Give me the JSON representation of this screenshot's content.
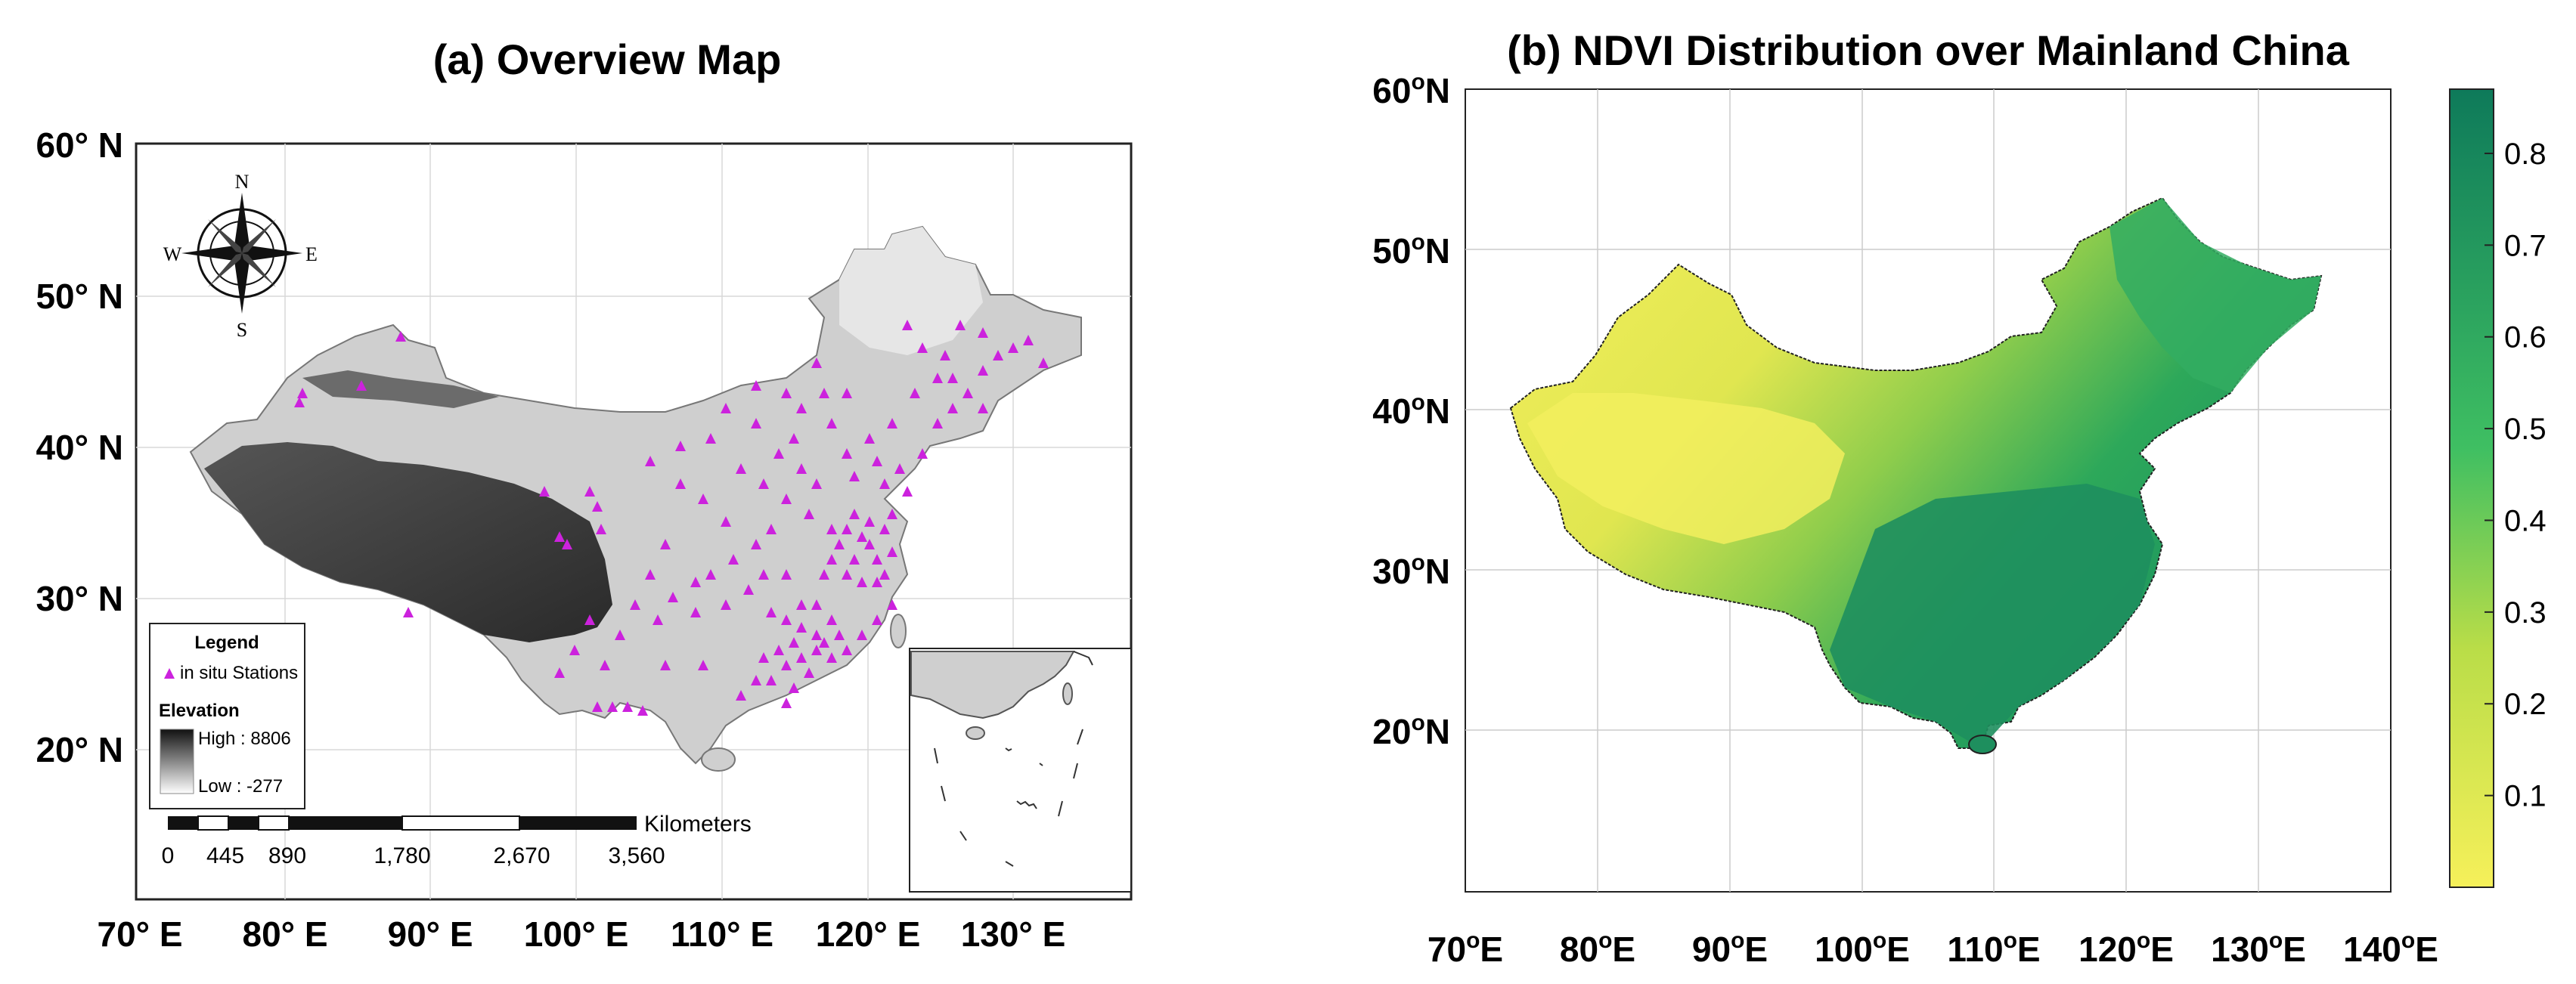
{
  "panel_a": {
    "title": "(a) Overview Map",
    "lat_ticks": [
      "60° N",
      "50° N",
      "40° N",
      "30° N",
      "20° N"
    ],
    "lon_ticks": [
      "70° E",
      "80° E",
      "90° E",
      "100° E",
      "110° E",
      "120° E",
      "130° E"
    ],
    "compass": {
      "n": "N",
      "s": "S",
      "e": "E",
      "w": "W"
    },
    "legend": {
      "title": "Legend",
      "stations_label": "in situ Stations",
      "elevation_title": "Elevation",
      "high_label": "High : 8806",
      "low_label": "Low : -277"
    },
    "scalebar": {
      "unit": "Kilometers",
      "ticks": [
        "0",
        "445",
        "890",
        "1,780",
        "2,670",
        "3,560"
      ]
    },
    "colors": {
      "station": "#cc22dd",
      "elevation_high": "#111111",
      "elevation_low": "#ffffff"
    }
  },
  "panel_b": {
    "title": "(b)  NDVI Distribution over Mainland China",
    "lat_ticks": [
      {
        "num": "60",
        "sup": "o",
        "dir": "N"
      },
      {
        "num": "50",
        "sup": "o",
        "dir": "N"
      },
      {
        "num": "40",
        "sup": "o",
        "dir": "N"
      },
      {
        "num": "30",
        "sup": "o",
        "dir": "N"
      },
      {
        "num": "20",
        "sup": "o",
        "dir": "N"
      }
    ],
    "lon_ticks": [
      {
        "num": "70",
        "sup": "o",
        "dir": "E"
      },
      {
        "num": "80",
        "sup": "o",
        "dir": "E"
      },
      {
        "num": "90",
        "sup": "o",
        "dir": "E"
      },
      {
        "num": "100",
        "sup": "o",
        "dir": "E"
      },
      {
        "num": "110",
        "sup": "o",
        "dir": "E"
      },
      {
        "num": "120",
        "sup": "o",
        "dir": "E"
      },
      {
        "num": "130",
        "sup": "o",
        "dir": "E"
      },
      {
        "num": "140",
        "sup": "o",
        "dir": "E"
      }
    ],
    "colorbar": {
      "ticks": [
        "0.8",
        "0.7",
        "0.6",
        "0.5",
        "0.4",
        "0.3",
        "0.2",
        "0.1"
      ],
      "color_low": "#f6f05a",
      "color_mid": "#2fb86c",
      "color_high": "#0e7a5a"
    }
  }
}
